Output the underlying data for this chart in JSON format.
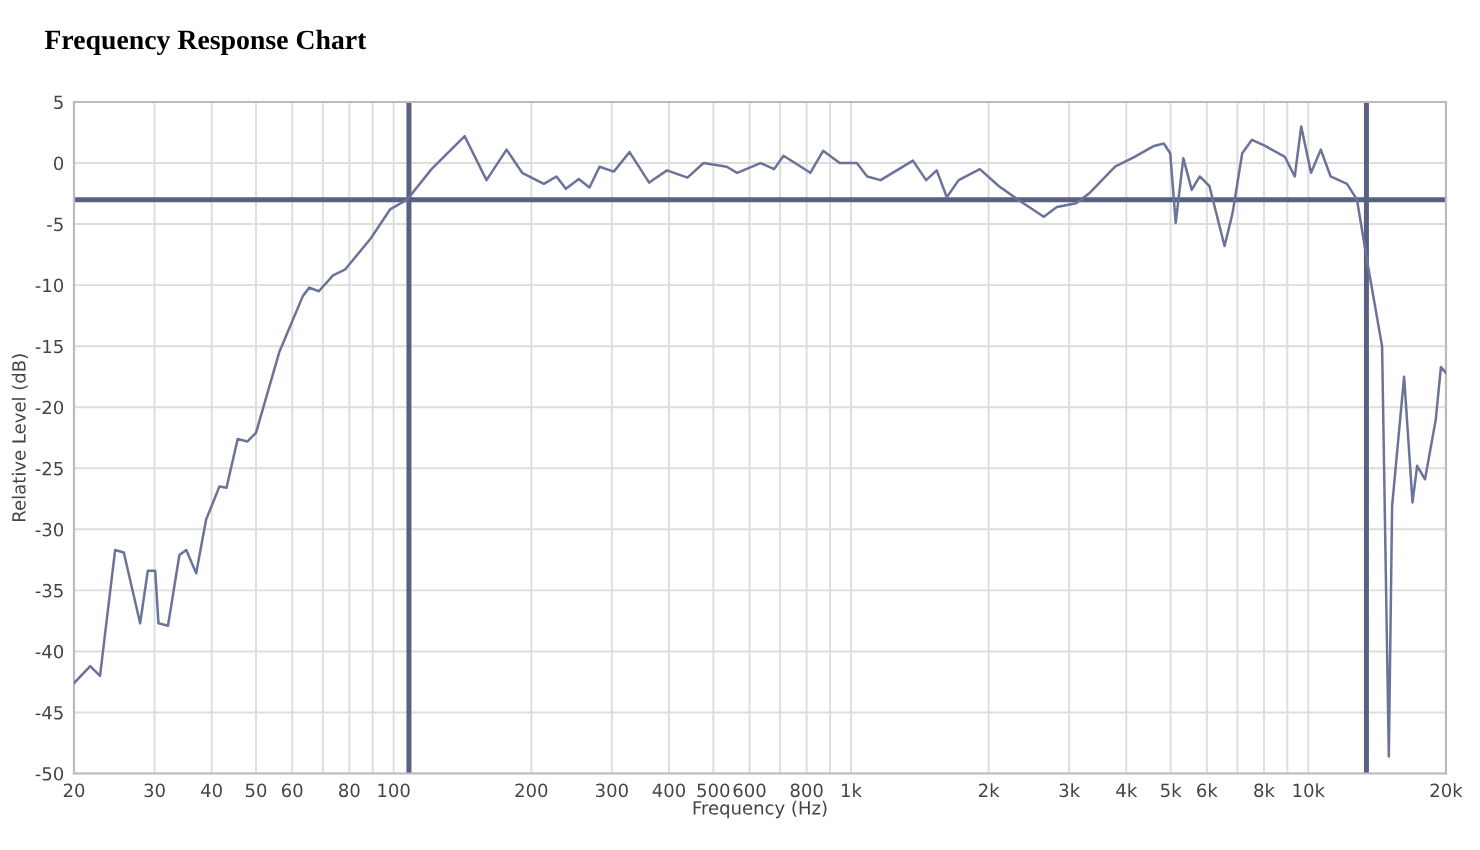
{
  "chart_data": {
    "type": "line",
    "title": "Frequency Response Chart",
    "xlabel": "Frequency (Hz)",
    "ylabel": "Relative Level (dB)",
    "log": "x",
    "series": [
      {
        "color": "#6b7399",
        "x": [
          20,
          21.7,
          22.8,
          24.6,
          25.7,
          27.9,
          29.0,
          30.1,
          30.6,
          32.1,
          34.0,
          35.2,
          37.0,
          38.9,
          41.6,
          43.1,
          45.6,
          47.9,
          50.0,
          56.2,
          63.3,
          65.4,
          68.6,
          73.7,
          78.4,
          89.0,
          98.2,
          107,
          121,
          143,
          159.6,
          176.6,
          191,
          213,
          227,
          238,
          254,
          268,
          282,
          303,
          328,
          362,
          396,
          439,
          476,
          535,
          564,
          634,
          679,
          712,
          815,
          869,
          945,
          1030,
          1085,
          1161,
          1366,
          1460,
          1540,
          1620,
          1720,
          1913,
          2107,
          2320,
          2640,
          2820,
          3106,
          3315,
          3780,
          4170,
          4600,
          4830,
          4990,
          5130,
          5330,
          5560,
          5790,
          6080,
          6560,
          6830,
          7170,
          7530,
          8050,
          8890,
          9340,
          9650,
          10140,
          10650,
          11190,
          12150,
          12780,
          13430,
          14500,
          15000,
          15250,
          16200,
          16900,
          17300,
          18000,
          19000,
          19500,
          20000
        ],
        "values": [
          -42.6,
          -41.2,
          -42.0,
          -31.7,
          -31.9,
          -37.7,
          -33.4,
          -33.4,
          -37.7,
          -37.9,
          -32.1,
          -31.7,
          -33.6,
          -29.2,
          -26.5,
          -26.6,
          -22.6,
          -22.8,
          -22.1,
          -15.5,
          -10.9,
          -10.2,
          -10.5,
          -9.2,
          -8.7,
          -6.2,
          -3.8,
          -3.0,
          -0.5,
          2.2,
          -1.4,
          1.1,
          -0.8,
          -1.7,
          -1.1,
          -2.1,
          -1.3,
          -2.0,
          -0.3,
          -0.7,
          0.9,
          -1.6,
          -0.6,
          -1.2,
          0.0,
          -0.3,
          -0.8,
          0.0,
          -0.5,
          0.6,
          -0.8,
          1.0,
          0.0,
          0.0,
          -1.1,
          -1.4,
          0.2,
          -1.4,
          -0.6,
          -2.8,
          -1.4,
          -0.5,
          -1.9,
          -3.0,
          -4.4,
          -3.6,
          -3.3,
          -2.5,
          -0.3,
          0.5,
          1.4,
          1.6,
          0.8,
          -4.9,
          0.4,
          -2.2,
          -1.1,
          -1.9,
          -6.8,
          -4.1,
          0.8,
          1.9,
          1.4,
          0.5,
          -1.1,
          3.0,
          -0.8,
          1.1,
          -1.1,
          -1.7,
          -3.0,
          -7.9,
          -15.0,
          -48.6,
          -28.1,
          -17.5,
          -27.8,
          -24.8,
          -25.9,
          -21.0,
          -16.7,
          -17.2
        ]
      }
    ],
    "ref_lines": [
      {
        "axis": "y",
        "value": -3,
        "color": "#5a6080"
      },
      {
        "axis": "x",
        "value": 108,
        "color": "#5a6080"
      },
      {
        "axis": "x",
        "value": 13400,
        "color": "#5a6080"
      }
    ],
    "xlim": [
      20,
      20000
    ],
    "ylim": [
      -50,
      5
    ],
    "xticks": [
      20,
      30,
      40,
      50,
      60,
      {
        "value": 70,
        "label": null
      },
      80,
      {
        "value": 90,
        "label": null
      },
      100,
      200,
      300,
      400,
      500,
      600,
      {
        "value": 700,
        "label": null
      },
      800,
      {
        "value": 900,
        "label": null
      },
      {
        "value": 1000,
        "label": "1k"
      },
      {
        "value": 2000,
        "label": "2k"
      },
      {
        "value": 3000,
        "label": "3k"
      },
      {
        "value": 4000,
        "label": "4k"
      },
      {
        "value": 5000,
        "label": "5k"
      },
      {
        "value": 6000,
        "label": "6k"
      },
      {
        "value": 7000,
        "label": null
      },
      {
        "value": 8000,
        "label": "8k"
      },
      {
        "value": 9000,
        "label": null
      },
      {
        "value": 10000,
        "label": "10k"
      },
      {
        "value": 20000,
        "label": "20k"
      }
    ],
    "yticks": [
      -50,
      -45,
      -40,
      -35,
      -30,
      -25,
      -20,
      -15,
      -10,
      -5,
      0,
      5
    ],
    "grid": true,
    "legend": false
  }
}
